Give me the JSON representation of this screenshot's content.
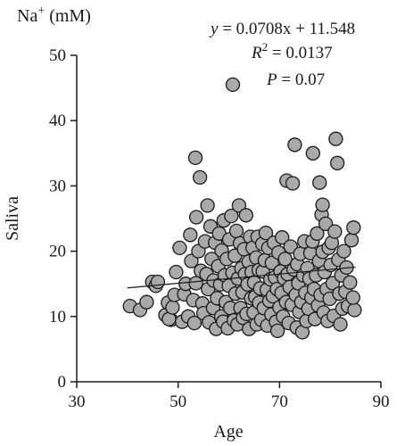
{
  "chart_data": {
    "type": "scatter",
    "title_prefix": "Na",
    "title_superscript": "+",
    "title_suffix": " (mM)",
    "xlabel": "Age",
    "ylabel": "Saliva",
    "xlim": [
      30,
      90
    ],
    "ylim": [
      0,
      50
    ],
    "xticks": [
      "30",
      "50",
      "70",
      "90"
    ],
    "yticks": [
      "0",
      "10",
      "20",
      "30",
      "40",
      "50"
    ],
    "annotations": {
      "equation_y": "y",
      "equation_rest": " = 0.0708x + 11.548",
      "r2_label": "R",
      "r2_sup": "2",
      "r2_rest": " = 0.0137",
      "p_label": "P",
      "p_rest": " = 0.07"
    },
    "fit": {
      "slope": 0.0708,
      "intercept": 11.548,
      "x_range": [
        40,
        85
      ]
    },
    "points": [
      [
        40.5,
        11.6
      ],
      [
        42.5,
        11.0
      ],
      [
        43.8,
        12.2
      ],
      [
        44.9,
        15.3
      ],
      [
        45.6,
        14.7
      ],
      [
        46.0,
        15.3
      ],
      [
        47.5,
        10.2
      ],
      [
        48.0,
        12.1
      ],
      [
        48.6,
        9.5
      ],
      [
        48.2,
        9.6
      ],
      [
        48.9,
        11.4
      ],
      [
        49.3,
        13.3
      ],
      [
        49.6,
        16.8
      ],
      [
        50.3,
        20.5
      ],
      [
        50.8,
        9.2
      ],
      [
        51.2,
        13.4
      ],
      [
        51.5,
        15.0
      ],
      [
        52.0,
        10.0
      ],
      [
        52.4,
        22.5
      ],
      [
        52.6,
        18.5
      ],
      [
        53.0,
        12.5
      ],
      [
        53.2,
        9.0
      ],
      [
        53.5,
        15.1
      ],
      [
        53.6,
        25.2
      ],
      [
        53.4,
        34.3
      ],
      [
        54.0,
        20.0
      ],
      [
        54.3,
        31.3
      ],
      [
        54.5,
        17.0
      ],
      [
        54.8,
        12.0
      ],
      [
        55.0,
        10.5
      ],
      [
        55.3,
        21.5
      ],
      [
        55.6,
        16.5
      ],
      [
        55.8,
        27.0
      ],
      [
        55.9,
        14.2
      ],
      [
        56.1,
        9.1
      ],
      [
        56.4,
        23.8
      ],
      [
        56.6,
        18.8
      ],
      [
        56.9,
        11.3
      ],
      [
        57.0,
        15.5
      ],
      [
        57.3,
        21.3
      ],
      [
        57.5,
        8.1
      ],
      [
        57.7,
        12.8
      ],
      [
        57.9,
        17.7
      ],
      [
        58.1,
        22.7
      ],
      [
        58.3,
        14.9
      ],
      [
        58.5,
        10.0
      ],
      [
        58.6,
        20.1
      ],
      [
        58.9,
        9.2
      ],
      [
        59.0,
        24.7
      ],
      [
        59.2,
        16.3
      ],
      [
        59.4,
        12.2
      ],
      [
        59.6,
        18.8
      ],
      [
        59.8,
        8.2
      ],
      [
        60.0,
        14.7
      ],
      [
        60.1,
        21.8
      ],
      [
        60.3,
        11.3
      ],
      [
        60.5,
        25.4
      ],
      [
        60.7,
        16.7
      ],
      [
        60.8,
        45.5
      ],
      [
        61.0,
        9.4
      ],
      [
        61.2,
        19.3
      ],
      [
        61.3,
        13.5
      ],
      [
        61.5,
        23.1
      ],
      [
        61.7,
        8.8
      ],
      [
        61.8,
        15.8
      ],
      [
        62.0,
        27.0
      ],
      [
        62.2,
        21.2
      ],
      [
        62.3,
        11.3
      ],
      [
        62.5,
        17.4
      ],
      [
        62.7,
        13.7
      ],
      [
        62.8,
        9.8
      ],
      [
        63.0,
        20.3
      ],
      [
        63.2,
        16.5
      ],
      [
        63.4,
        25.5
      ],
      [
        63.5,
        10.4
      ],
      [
        63.7,
        14.9
      ],
      [
        63.9,
        18.4
      ],
      [
        64.0,
        8.1
      ],
      [
        64.2,
        22.2
      ],
      [
        64.4,
        12.8
      ],
      [
        64.5,
        16.8
      ],
      [
        64.7,
        20.5
      ],
      [
        64.9,
        10.6
      ],
      [
        65.0,
        15.2
      ],
      [
        65.2,
        13.0
      ],
      [
        65.4,
        19.0
      ],
      [
        65.5,
        8.8
      ],
      [
        65.7,
        22.2
      ],
      [
        65.9,
        17.1
      ],
      [
        66.0,
        12.1
      ],
      [
        66.2,
        14.3
      ],
      [
        66.4,
        9.5
      ],
      [
        66.6,
        21.1
      ],
      [
        66.7,
        16.9
      ],
      [
        66.9,
        11.3
      ],
      [
        67.1,
        18.6
      ],
      [
        67.3,
        22.8
      ],
      [
        67.5,
        14.1
      ],
      [
        67.6,
        8.6
      ],
      [
        67.8,
        20.5
      ],
      [
        68.0,
        12.4
      ],
      [
        68.2,
        15.7
      ],
      [
        68.4,
        10.3
      ],
      [
        68.5,
        18.2
      ],
      [
        68.7,
        13.1
      ],
      [
        68.9,
        21.3
      ],
      [
        69.1,
        16.0
      ],
      [
        69.3,
        9.2
      ],
      [
        69.5,
        14.2
      ],
      [
        69.6,
        7.8
      ],
      [
        69.8,
        19.8
      ],
      [
        70.0,
        11.4
      ],
      [
        70.2,
        16.9
      ],
      [
        70.4,
        13.6
      ],
      [
        70.5,
        22.1
      ],
      [
        70.7,
        10.0
      ],
      [
        70.9,
        15.8
      ],
      [
        71.1,
        18.8
      ],
      [
        71.3,
        12.2
      ],
      [
        71.4,
        30.8
      ],
      [
        71.6,
        16.5
      ],
      [
        71.8,
        9.0
      ],
      [
        72.0,
        14.5
      ],
      [
        72.2,
        20.7
      ],
      [
        72.4,
        11.8
      ],
      [
        72.6,
        30.4
      ],
      [
        72.8,
        17.2
      ],
      [
        73.0,
        36.3
      ],
      [
        73.2,
        13.3
      ],
      [
        73.4,
        8.3
      ],
      [
        73.5,
        18.0
      ],
      [
        73.7,
        15.1
      ],
      [
        73.9,
        10.7
      ],
      [
        74.1,
        19.6
      ],
      [
        74.3,
        12.2
      ],
      [
        74.5,
        7.6
      ],
      [
        74.7,
        16.3
      ],
      [
        74.9,
        21.5
      ],
      [
        75.1,
        13.6
      ],
      [
        75.3,
        9.3
      ],
      [
        75.5,
        17.4
      ],
      [
        75.7,
        11.2
      ],
      [
        75.9,
        15.8
      ],
      [
        76.1,
        19.7
      ],
      [
        76.3,
        12.9
      ],
      [
        76.5,
        21.5
      ],
      [
        76.6,
        35.0
      ],
      [
        76.8,
        14.2
      ],
      [
        77.0,
        9.6
      ],
      [
        77.2,
        16.3
      ],
      [
        77.4,
        22.7
      ],
      [
        77.6,
        11.7
      ],
      [
        77.8,
        18.5
      ],
      [
        77.9,
        30.5
      ],
      [
        78.1,
        13.3
      ],
      [
        78.3,
        25.6
      ],
      [
        78.5,
        19.9
      ],
      [
        78.5,
        27.1
      ],
      [
        78.7,
        10.6
      ],
      [
        78.9,
        16.8
      ],
      [
        79.1,
        24.2
      ],
      [
        79.3,
        14.2
      ],
      [
        79.5,
        9.3
      ],
      [
        79.7,
        20.5
      ],
      [
        79.9,
        12.7
      ],
      [
        80.1,
        17.9
      ],
      [
        80.3,
        21.3
      ],
      [
        80.5,
        15.1
      ],
      [
        80.7,
        10.1
      ],
      [
        80.9,
        23.0
      ],
      [
        81.1,
        37.2
      ],
      [
        81.4,
        33.5
      ],
      [
        81.6,
        18.7
      ],
      [
        81.8,
        13.5
      ],
      [
        82.0,
        8.8
      ],
      [
        82.2,
        16.3
      ],
      [
        82.4,
        11.2
      ],
      [
        82.7,
        20.0
      ],
      [
        83.0,
        13.8
      ],
      [
        83.2,
        17.5
      ],
      [
        83.5,
        11.6
      ],
      [
        83.9,
        15.2
      ],
      [
        84.2,
        21.7
      ],
      [
        84.6,
        23.6
      ],
      [
        84.8,
        11.0
      ],
      [
        84.5,
        12.9
      ]
    ]
  }
}
